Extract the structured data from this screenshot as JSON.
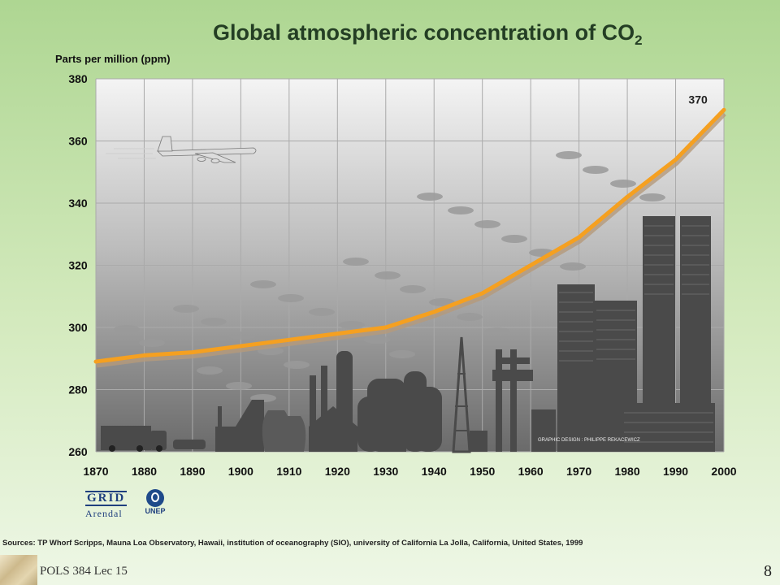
{
  "chart_data": {
    "type": "line",
    "title": "Global atmospheric concentration of CO",
    "title_subscript": "2",
    "ylabel": "Parts per million (ppm)",
    "xlabel": "",
    "x_ticks": [
      1870,
      1880,
      1890,
      1900,
      1910,
      1920,
      1930,
      1940,
      1950,
      1960,
      1970,
      1980,
      1990,
      2000
    ],
    "y_ticks": [
      260,
      280,
      300,
      320,
      340,
      360,
      380
    ],
    "xlim": [
      1870,
      2000
    ],
    "ylim": [
      260,
      380
    ],
    "grid": true,
    "x": [
      1870,
      1880,
      1890,
      1900,
      1910,
      1920,
      1930,
      1940,
      1950,
      1960,
      1970,
      1980,
      1990,
      2000
    ],
    "series": [
      {
        "name": "",
        "values": [
          289,
          291,
          292,
          294,
          296,
          298,
          300,
          305,
          311,
          320,
          329,
          342,
          354,
          370
        ]
      }
    ],
    "annotations": [
      {
        "text": "370",
        "x": 1998,
        "y": 370
      }
    ],
    "credit": "GRAPHIC DESIGN : PHILIPPE REKACEWICZ",
    "source": "Sources: TP Whorf  Scripps, Mauna Loa Observatory, Hawaii, institution of oceanography (SIO), university of California La Jolla, California, United States, 1999"
  },
  "colors": {
    "line": "#f5a020",
    "line_shadow": "#b59a7a",
    "plot_top": "#f4f4f4",
    "plot_bottom": "#6a6a6a",
    "grid": "#aaaaaa",
    "silhouette": "#4a4a4a"
  },
  "logos": {
    "grid_letters": "GRID",
    "grid_sub": "Arendal",
    "unep": "UNEP"
  },
  "footer": {
    "label": "POLS 384 Lec 15",
    "page_number": "8"
  }
}
